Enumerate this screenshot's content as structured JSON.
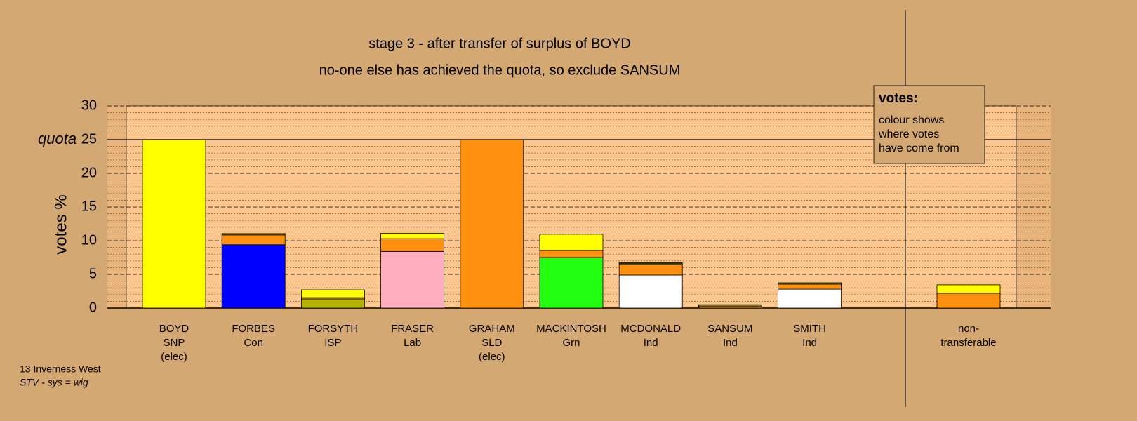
{
  "chart_data": {
    "type": "bar",
    "stacked": true,
    "title": "stage 3 - after transfer of surplus of BOYD",
    "subtitle": "no-one else has achieved the quota, so exclude SANSUM",
    "y_label": "votes %",
    "categories": [
      [
        "BOYD",
        "SNP",
        "(elec)"
      ],
      [
        "FORBES",
        "Con"
      ],
      [
        "FORSYTH",
        "ISP"
      ],
      [
        "FRASER",
        "Lab"
      ],
      [
        "GRAHAM",
        "SLD",
        "(elec)"
      ],
      [
        "MACKINTOSH",
        "Grn"
      ],
      [
        "MCDONALD",
        "Ind"
      ],
      [
        "SANSUM",
        "Ind"
      ],
      [
        "SMITH",
        "Ind"
      ],
      null,
      [
        "non-",
        "transferable"
      ]
    ],
    "series": [
      {
        "color": "#0000ff",
        "values": [
          null,
          9.4,
          null,
          null,
          null,
          null,
          null,
          null,
          null,
          null,
          null
        ]
      },
      {
        "color": "#b3b300",
        "values": [
          null,
          null,
          1.35,
          null,
          null,
          null,
          null,
          null,
          null,
          null,
          null
        ]
      },
      {
        "color": "#ffaec0",
        "values": [
          null,
          null,
          null,
          8.4,
          null,
          null,
          null,
          null,
          null,
          null,
          null
        ]
      },
      {
        "color": "#22ff11",
        "values": [
          null,
          null,
          null,
          null,
          null,
          7.5,
          null,
          null,
          null,
          null,
          null
        ]
      },
      {
        "color": "#ffffff",
        "values": [
          null,
          null,
          null,
          null,
          null,
          null,
          4.9,
          null,
          2.8,
          null,
          null
        ]
      },
      {
        "color": "#ff9010",
        "values": [
          null,
          1.45,
          0.2,
          1.9,
          25,
          1.05,
          1.55,
          0.2,
          0.75,
          null,
          2.2
        ]
      },
      {
        "color": "#807000",
        "values": [
          null,
          0.2,
          null,
          null,
          null,
          null,
          0.2,
          0.3,
          0.2,
          null,
          null
        ]
      },
      {
        "color": "#ffff00",
        "values": [
          25,
          null,
          1.15,
          0.8,
          null,
          2.4,
          0.1,
          null,
          null,
          null,
          1.25
        ]
      }
    ],
    "ylim": [
      0,
      30
    ],
    "yticks": [
      0,
      5,
      10,
      15,
      20,
      25,
      30
    ],
    "minor_yticks": [
      1,
      2,
      3,
      4,
      6,
      7,
      8,
      9,
      11,
      12,
      13,
      14,
      16,
      17,
      18,
      19,
      21,
      22,
      23,
      24,
      26,
      27,
      28,
      29
    ],
    "grid": true,
    "quota": {
      "label": "quota",
      "value": 25
    },
    "legend": {
      "title": "votes:",
      "lines": [
        "colour shows",
        "where votes",
        "have come from"
      ]
    },
    "footnote": [
      "13 Inverness West",
      "STV - sys = wig"
    ]
  }
}
